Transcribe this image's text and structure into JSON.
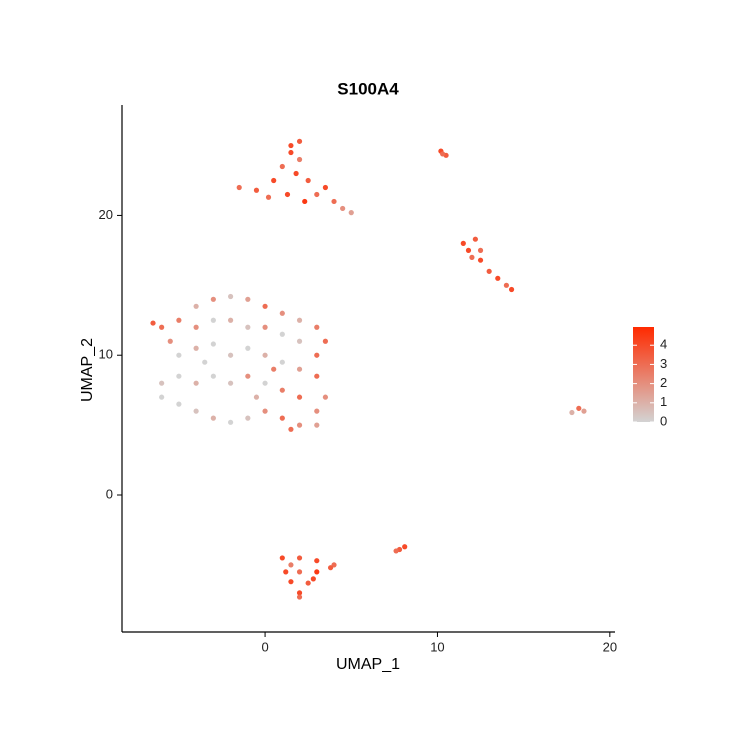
{
  "chart_data": {
    "type": "scatter",
    "title": "S100A4",
    "x_label": "UMAP_1",
    "y_label": "UMAP_2",
    "xlim": [
      -8.3,
      20.3
    ],
    "ylim": [
      -9.8,
      27.9
    ],
    "xticks": [
      0,
      10,
      20
    ],
    "yticks": [
      0,
      10,
      20
    ],
    "grid": false,
    "color_low": "#d3d3d3",
    "color_high": "#ff2a00",
    "colorbar_lim": [
      0,
      4.95
    ],
    "colorbar_ticks": [
      0,
      1,
      2,
      3,
      4
    ],
    "legend_position": "right",
    "x": [
      -6,
      -5.5,
      -6.5,
      -5,
      -4,
      -3,
      -2,
      -1,
      0,
      1,
      2,
      3,
      3.5,
      -4,
      -3,
      -2,
      -1,
      0,
      1,
      2,
      3,
      -5,
      -4,
      -3,
      -2,
      -1,
      0,
      1,
      2,
      3,
      3.5,
      -6,
      -5,
      -4,
      -3,
      -2,
      -1,
      0,
      1,
      2,
      3,
      -6,
      -5,
      -4,
      -3,
      -2,
      -1,
      0,
      1,
      2,
      3,
      1.5,
      -0.5,
      0.5,
      -3.5,
      -1.5,
      -0.5,
      0.5,
      1,
      1.5,
      2,
      1.3,
      2.3,
      3,
      3.5,
      2.5,
      1.8,
      0.2,
      2,
      1.5,
      4,
      4.5,
      5,
      10.2,
      10.5,
      10.3,
      11.5,
      11.8,
      12.2,
      12,
      12.5,
      13,
      13.5,
      14,
      14.3,
      12.5,
      17.8,
      18.2,
      18.5,
      1,
      2,
      3,
      4,
      1.2,
      2,
      3,
      1.5,
      2.5,
      2,
      2,
      3.8,
      1.5,
      2.8,
      7.8,
      8.1,
      7.6
    ],
    "y": [
      12,
      11,
      12.3,
      12.5,
      13.5,
      14,
      14.2,
      14,
      13.5,
      13,
      12.5,
      12,
      11,
      12,
      12.5,
      12.5,
      12,
      12,
      11.5,
      11,
      10,
      10,
      10.5,
      10.8,
      10,
      10.5,
      10,
      9.5,
      9,
      8.5,
      7,
      8,
      8.5,
      8,
      8.5,
      8,
      8.5,
      8,
      7.5,
      7,
      6,
      7,
      6.5,
      6,
      5.5,
      5.2,
      5.5,
      6,
      5.5,
      5,
      5,
      4.7,
      7,
      9,
      9.5,
      22,
      21.8,
      22.5,
      23.5,
      24.5,
      25.3,
      21.5,
      21,
      21.5,
      22,
      22.5,
      23,
      21.3,
      24,
      25,
      21,
      20.5,
      20.2,
      24.6,
      24.3,
      24.4,
      18,
      17.5,
      18.3,
      17,
      16.8,
      16,
      15.5,
      15,
      14.7,
      17.5,
      5.9,
      6.2,
      6,
      -4.5,
      -4.5,
      -4.7,
      -5,
      -5.5,
      -5.5,
      -5.5,
      -6.2,
      -6.3,
      -7,
      -7.3,
      -5.2,
      -5,
      -6,
      -3.9,
      -3.7,
      -4
    ],
    "values": [
      3,
      2,
      3.5,
      2.5,
      1,
      2,
      0.5,
      1.5,
      3,
      2,
      1,
      2.5,
      3,
      2,
      0,
      1,
      0.5,
      2,
      0,
      0.5,
      3,
      0,
      1,
      0,
      0.5,
      0,
      1,
      0,
      1.5,
      3,
      2,
      0.5,
      0,
      1,
      0,
      0.5,
      2,
      0,
      2.5,
      3,
      2,
      0,
      0,
      0.5,
      1,
      0,
      0.5,
      2,
      3,
      2,
      1.5,
      3,
      1,
      2.5,
      0,
      3,
      3.5,
      4,
      3,
      4,
      3.5,
      4,
      4.5,
      3,
      4,
      3.5,
      4,
      3,
      2.5,
      4,
      3,
      2,
      1.5,
      4,
      3.5,
      3,
      4,
      4,
      3.5,
      3,
      4,
      3.5,
      4,
      3,
      4,
      3,
      1,
      3,
      1.5,
      4,
      3.5,
      4,
      3,
      4,
      3,
      4.5,
      4,
      3.5,
      4,
      3,
      3.5,
      2.5,
      4,
      3.5,
      4,
      3
    ]
  }
}
